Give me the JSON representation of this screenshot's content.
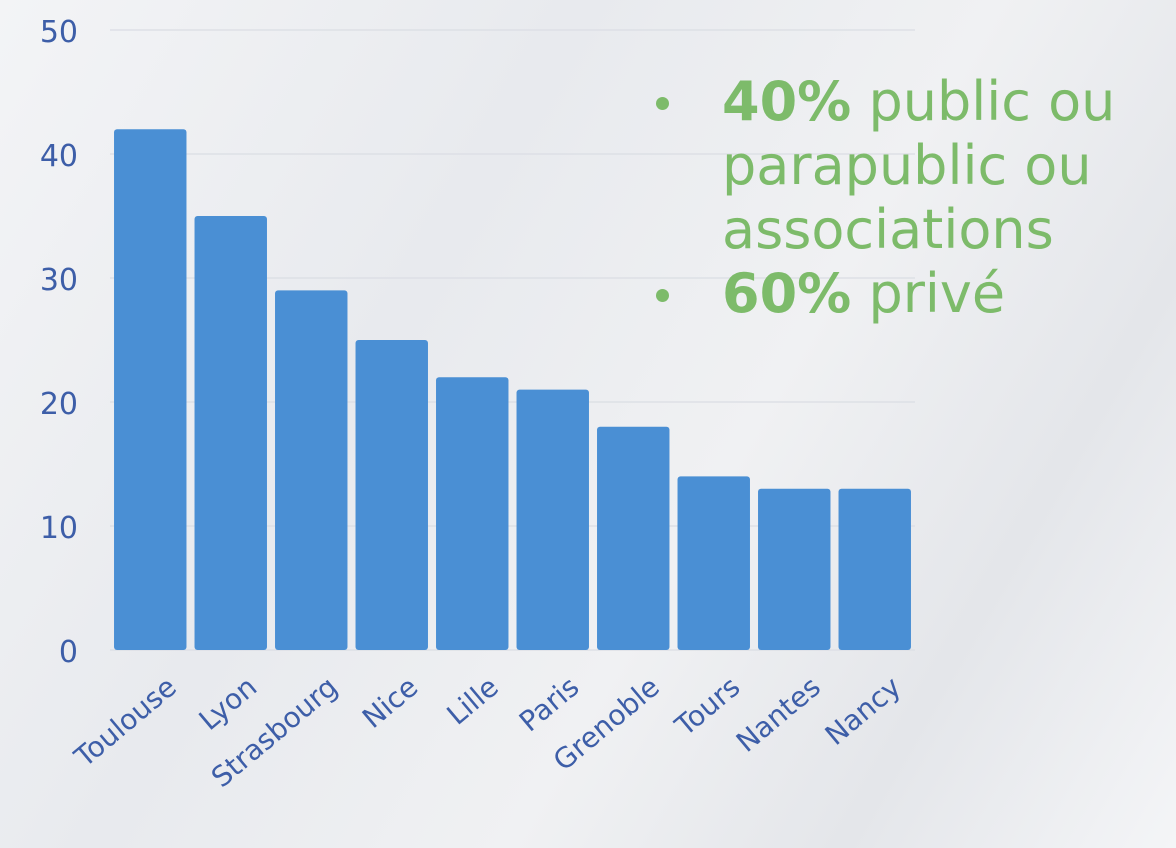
{
  "chart_data": {
    "type": "bar",
    "categories": [
      "Toulouse",
      "Lyon",
      "Strasbourg",
      "Nice",
      "Lille",
      "Paris",
      "Grenoble",
      "Tours",
      "Nantes",
      "Nancy"
    ],
    "values": [
      42,
      35,
      29,
      25,
      22,
      21,
      18,
      14,
      13,
      13
    ],
    "color": "#4a8fd4",
    "ylim": [
      0,
      50
    ],
    "yticks": [
      0,
      10,
      20,
      30,
      40,
      50
    ],
    "grid": true,
    "annotations": [
      {
        "bold": "40%",
        "text": "public ou parapublic ou associations"
      },
      {
        "bold": "60%",
        "text": "privé"
      }
    ]
  }
}
